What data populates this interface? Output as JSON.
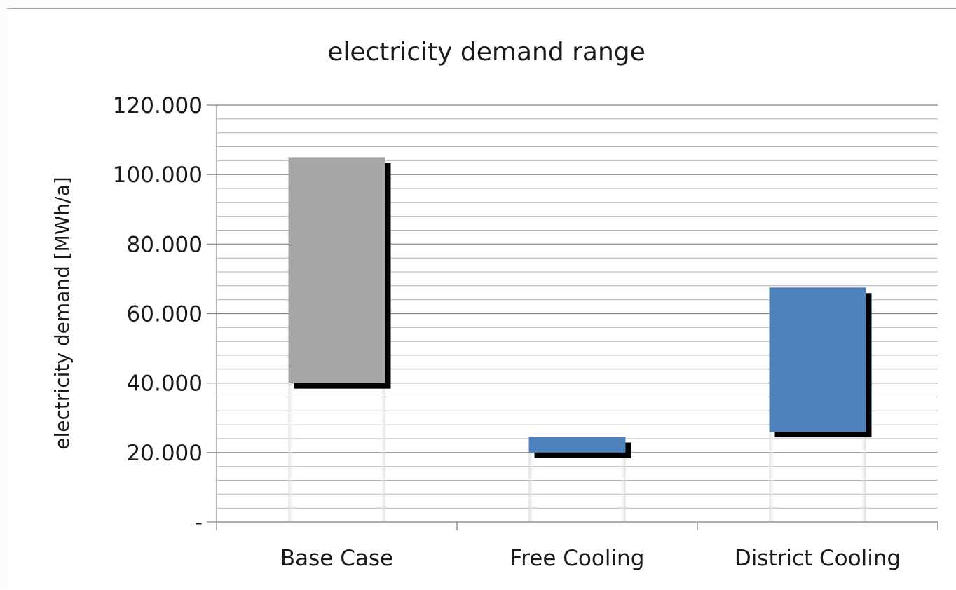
{
  "chart_data": {
    "type": "bar",
    "subtype": "floating-range",
    "title": "electricity demand range",
    "ylabel": "electricity demand [MWh/a]",
    "xlabel": "",
    "categories": [
      "Base Case",
      "Free Cooling",
      "District Cooling"
    ],
    "ranges": [
      {
        "low": 40000,
        "high": 105000,
        "color": "#a6a6a6"
      },
      {
        "low": 20000,
        "high": 24500,
        "color": "#4f81bd"
      },
      {
        "low": 26000,
        "high": 67500,
        "color": "#4f81bd"
      }
    ],
    "ylim": [
      0,
      120000
    ],
    "yticks": [
      0,
      20000,
      40000,
      60000,
      80000,
      100000,
      120000
    ],
    "ytick_labels": [
      "-",
      "20.000",
      "40.000",
      "60.000",
      "80.000",
      "100.000",
      "120.000"
    ],
    "minor_grid": true,
    "grid": true,
    "legend": "none",
    "shadow": true
  }
}
